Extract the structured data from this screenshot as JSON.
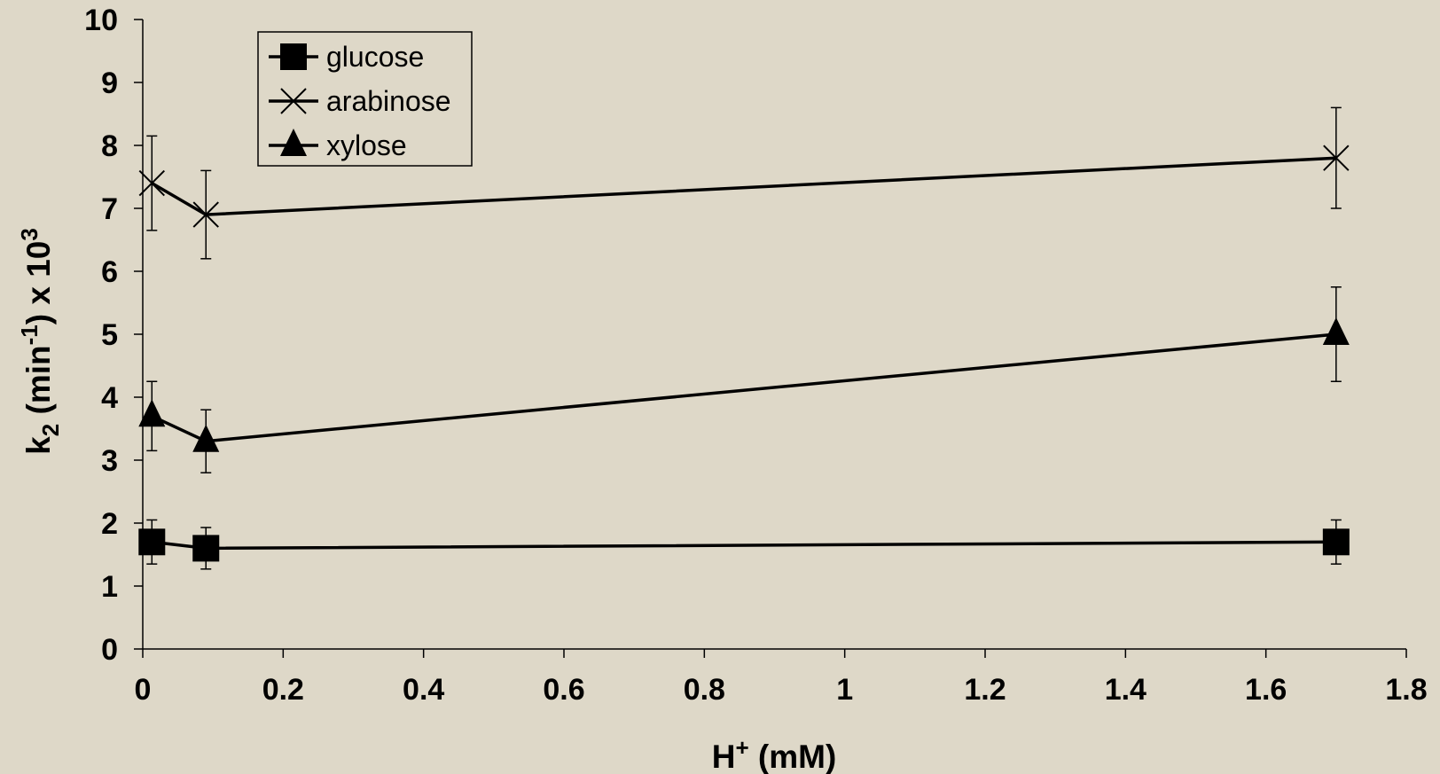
{
  "chart_data": {
    "type": "line",
    "xlabel": {
      "main": "H",
      "sup": "+",
      "rest": " (mM)"
    },
    "ylabel": {
      "p1": "k",
      "sub": "2",
      "p2": " (min",
      "sup1": "-1",
      "p3": ") x 10",
      "sup2": "3"
    },
    "xlim": [
      0,
      1.8
    ],
    "ylim": [
      0,
      10
    ],
    "x_ticks": [
      "0",
      "0.2",
      "0.4",
      "0.6",
      "0.8",
      "1",
      "1.2",
      "1.4",
      "1.6",
      "1.8"
    ],
    "y_ticks": [
      "0",
      "1",
      "2",
      "3",
      "4",
      "5",
      "6",
      "7",
      "8",
      "9",
      "10"
    ],
    "grid": false,
    "legend_position": "top-left",
    "series": [
      {
        "name": "glucose",
        "marker": "square",
        "x": [
          0.013,
          0.09,
          1.7
        ],
        "y": [
          1.7,
          1.6,
          1.7
        ],
        "err": [
          0.35,
          0.33,
          0.35
        ]
      },
      {
        "name": "arabinose",
        "marker": "x",
        "x": [
          0.013,
          0.09,
          1.7
        ],
        "y": [
          7.4,
          6.9,
          7.8
        ],
        "err": [
          0.75,
          0.7,
          0.8
        ]
      },
      {
        "name": "xylose",
        "marker": "triangle",
        "x": [
          0.013,
          0.09,
          1.7
        ],
        "y": [
          3.7,
          3.3,
          5.0
        ],
        "err": [
          0.55,
          0.5,
          0.75
        ]
      }
    ]
  }
}
